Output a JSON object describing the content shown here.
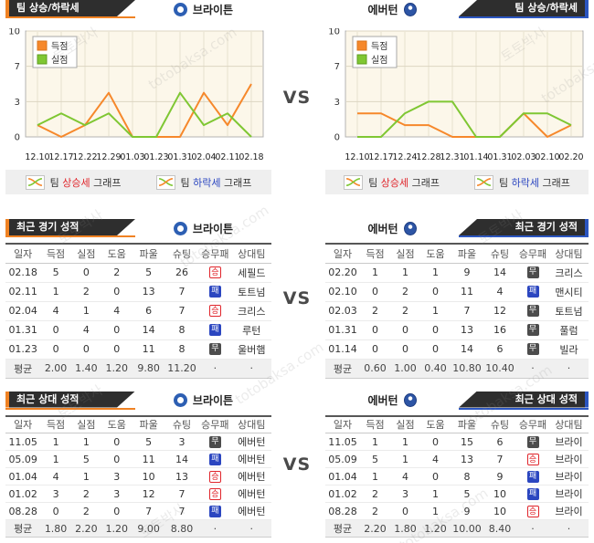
{
  "brand": {
    "watermark_kr": "토토박사",
    "watermark_en": "totobaksa.com"
  },
  "colors": {
    "left_accent": "#f08223",
    "right_accent": "#2b55c0",
    "banner_bg": "#2e2e2e",
    "score_line": "#f6882b",
    "concede_line": "#7fc733",
    "win": "#e0262c",
    "draw": "#4c4c4c",
    "lose": "#2b46c0",
    "up_word": "#e0262c",
    "down_word": "#2b46c0"
  },
  "vs": "VS",
  "teams": {
    "left": "브라이튼",
    "right": "에버턴"
  },
  "sections": {
    "trend": {
      "title": "팀 상승/하락세"
    },
    "recent": {
      "title": "최근 경기 성적"
    },
    "h2h": {
      "title": "최근 상대 성적"
    }
  },
  "graph_legend": {
    "up": {
      "pre": "팀",
      "word": "상승세",
      "post": "그래프"
    },
    "down": {
      "pre": "팀",
      "word": "하락세",
      "post": "그래프"
    }
  },
  "chart_data": [
    {
      "type": "line",
      "team": "브라이튼",
      "x": [
        "12.10",
        "12.17",
        "12.22",
        "12.29",
        "01.03",
        "01.23",
        "01.31",
        "02.04",
        "02.11",
        "02.18"
      ],
      "yticks": [
        0,
        3,
        7,
        10
      ],
      "ylim": [
        0,
        10
      ],
      "grid": true,
      "legend_position": "top-left",
      "series": [
        {
          "name": "득점",
          "color": "#f6882b",
          "edge": "#d9731a",
          "values": [
            1,
            0,
            1,
            4,
            0,
            0,
            0,
            4,
            1,
            5
          ]
        },
        {
          "name": "실점",
          "color": "#7fc733",
          "edge": "#5f9e1f",
          "values": [
            1,
            2,
            1,
            2,
            0,
            0,
            4,
            1,
            2,
            0
          ]
        }
      ]
    },
    {
      "type": "line",
      "team": "에버턴",
      "x": [
        "12.10",
        "12.17",
        "12.24",
        "12.28",
        "12.31",
        "01.14",
        "01.31",
        "02.03",
        "02.10",
        "02.20"
      ],
      "yticks": [
        0,
        3,
        7,
        10
      ],
      "ylim": [
        0,
        10
      ],
      "grid": true,
      "legend_position": "top-left",
      "series": [
        {
          "name": "득점",
          "color": "#f6882b",
          "edge": "#d9731a",
          "values": [
            2,
            2,
            1,
            1,
            0,
            0,
            0,
            2,
            0,
            1
          ]
        },
        {
          "name": "실점",
          "color": "#7fc733",
          "edge": "#5f9e1f",
          "values": [
            0,
            0,
            2,
            3,
            3,
            0,
            0,
            2,
            2,
            1
          ]
        }
      ]
    }
  ],
  "tables": {
    "headers": [
      "일자",
      "득점",
      "실점",
      "도움",
      "파울",
      "슈팅",
      "승무패",
      "상대팀"
    ],
    "recent_left": {
      "rows": [
        [
          "02.18",
          "5",
          "0",
          "2",
          "5",
          "26",
          "승",
          "세필드"
        ],
        [
          "02.11",
          "1",
          "2",
          "0",
          "13",
          "7",
          "패",
          "토트넘"
        ],
        [
          "02.04",
          "4",
          "1",
          "4",
          "6",
          "7",
          "승",
          "크리스"
        ],
        [
          "01.31",
          "0",
          "4",
          "0",
          "14",
          "8",
          "패",
          "루턴"
        ],
        [
          "01.23",
          "0",
          "0",
          "0",
          "11",
          "8",
          "무",
          "울버햄"
        ]
      ],
      "avg": [
        "평균",
        "2.00",
        "1.40",
        "1.20",
        "9.80",
        "11.20",
        "·",
        "·"
      ]
    },
    "recent_right": {
      "rows": [
        [
          "02.20",
          "1",
          "1",
          "1",
          "9",
          "14",
          "무",
          "크리스"
        ],
        [
          "02.10",
          "0",
          "2",
          "0",
          "11",
          "4",
          "패",
          "맨시티"
        ],
        [
          "02.03",
          "2",
          "2",
          "1",
          "7",
          "12",
          "무",
          "토트넘"
        ],
        [
          "01.31",
          "0",
          "0",
          "0",
          "13",
          "16",
          "무",
          "풀럼"
        ],
        [
          "01.14",
          "0",
          "0",
          "0",
          "14",
          "6",
          "무",
          "빌라"
        ]
      ],
      "avg": [
        "평균",
        "0.60",
        "1.00",
        "0.40",
        "10.80",
        "10.40",
        "·",
        "·"
      ]
    },
    "h2h_left": {
      "rows": [
        [
          "11.05",
          "1",
          "1",
          "0",
          "5",
          "3",
          "무",
          "에버턴"
        ],
        [
          "05.09",
          "1",
          "5",
          "0",
          "11",
          "14",
          "패",
          "에버턴"
        ],
        [
          "01.04",
          "4",
          "1",
          "3",
          "10",
          "13",
          "승",
          "에버턴"
        ],
        [
          "01.02",
          "3",
          "2",
          "3",
          "12",
          "7",
          "승",
          "에버턴"
        ],
        [
          "08.28",
          "0",
          "2",
          "0",
          "7",
          "7",
          "패",
          "에버턴"
        ]
      ],
      "avg": [
        "평균",
        "1.80",
        "2.20",
        "1.20",
        "9.00",
        "8.80",
        "·",
        "·"
      ]
    },
    "h2h_right": {
      "rows": [
        [
          "11.05",
          "1",
          "1",
          "0",
          "15",
          "6",
          "무",
          "브라이"
        ],
        [
          "05.09",
          "5",
          "1",
          "4",
          "13",
          "7",
          "승",
          "브라이"
        ],
        [
          "01.04",
          "1",
          "4",
          "0",
          "8",
          "9",
          "패",
          "브라이"
        ],
        [
          "01.02",
          "2",
          "3",
          "1",
          "5",
          "10",
          "패",
          "브라이"
        ],
        [
          "08.28",
          "2",
          "0",
          "1",
          "9",
          "10",
          "승",
          "브라이"
        ]
      ],
      "avg": [
        "평균",
        "2.20",
        "1.80",
        "1.20",
        "10.00",
        "8.40",
        "·",
        "·"
      ]
    }
  }
}
